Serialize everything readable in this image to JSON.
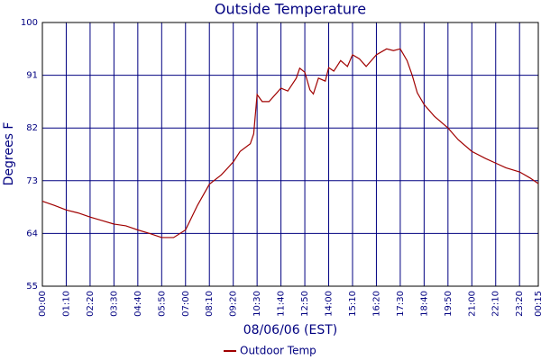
{
  "chart_data": {
    "type": "line",
    "title": "Outside Temperature",
    "x_label": "08/06/06 (EST)",
    "y_label": "Degrees F",
    "x": [
      0,
      35,
      70,
      105,
      140,
      175,
      210,
      245,
      280,
      315,
      350,
      385,
      420,
      440,
      455,
      490,
      525,
      560,
      580,
      610,
      620,
      630,
      645,
      665,
      700,
      720,
      745,
      755,
      770,
      785,
      795,
      810,
      830,
      840,
      855,
      875,
      895,
      910,
      930,
      950,
      980,
      1010,
      1030,
      1050,
      1070,
      1085,
      1100,
      1120,
      1150,
      1190,
      1220,
      1260,
      1300,
      1330,
      1360,
      1400,
      1430,
      1455
    ],
    "series": [
      {
        "name": "Outdoor Temp",
        "color": "#a00000",
        "values": [
          69.5,
          68.8,
          68,
          67.5,
          66.8,
          66.2,
          65.6,
          65.3,
          64.6,
          64,
          63.3,
          63.3,
          64.6,
          67,
          68.8,
          72.4,
          74,
          76.2,
          78,
          79.3,
          81,
          87.7,
          86.5,
          86.5,
          88.8,
          88.3,
          90.5,
          92.2,
          91.5,
          88.5,
          87.8,
          90.5,
          90,
          92.3,
          91.7,
          93.5,
          92.5,
          94.5,
          93.8,
          92.5,
          94.5,
          95.5,
          95.2,
          95.5,
          93.5,
          91,
          88,
          86,
          84,
          82,
          80,
          78,
          76.8,
          76,
          75.2,
          74.5,
          73.5,
          72.5
        ]
      }
    ],
    "xlim": [
      0,
      1455
    ],
    "xticks": [
      {
        "value": 0,
        "label": "00:00"
      },
      {
        "value": 70,
        "label": "01:10"
      },
      {
        "value": 140,
        "label": "02:20"
      },
      {
        "value": 210,
        "label": "03:30"
      },
      {
        "value": 280,
        "label": "04:40"
      },
      {
        "value": 350,
        "label": "05:50"
      },
      {
        "value": 420,
        "label": "07:00"
      },
      {
        "value": 490,
        "label": "08:10"
      },
      {
        "value": 560,
        "label": "09:20"
      },
      {
        "value": 630,
        "label": "10:30"
      },
      {
        "value": 700,
        "label": "11:40"
      },
      {
        "value": 770,
        "label": "12:50"
      },
      {
        "value": 840,
        "label": "14:00"
      },
      {
        "value": 910,
        "label": "15:10"
      },
      {
        "value": 980,
        "label": "16:20"
      },
      {
        "value": 1050,
        "label": "17:30"
      },
      {
        "value": 1120,
        "label": "18:40"
      },
      {
        "value": 1190,
        "label": "19:50"
      },
      {
        "value": 1260,
        "label": "21:00"
      },
      {
        "value": 1330,
        "label": "22:10"
      },
      {
        "value": 1400,
        "label": "23:20"
      },
      {
        "value": 1455,
        "label": "00:15"
      }
    ],
    "ylim": [
      55,
      100
    ],
    "yticks": [
      55,
      64,
      73,
      82,
      91,
      100
    ],
    "grid": true,
    "legend": "bottom"
  }
}
